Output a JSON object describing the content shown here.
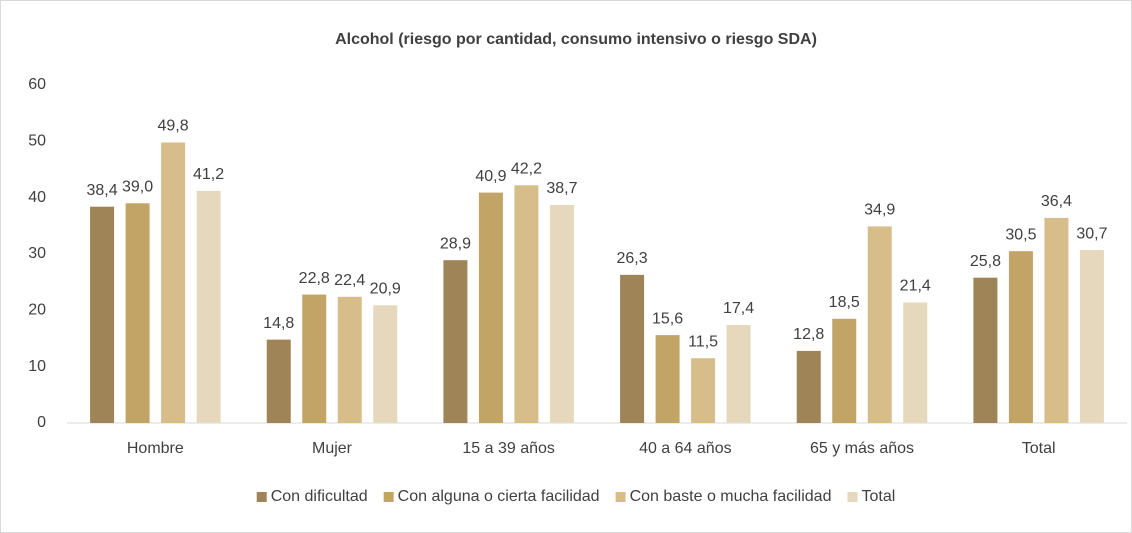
{
  "chart_data": {
    "type": "bar",
    "title": "Alcohol (riesgo por cantidad, consumo intensivo o riesgo SDA)",
    "categories": [
      "Hombre",
      "Mujer",
      "15 a 39 años",
      "40 a 64 años",
      "65 y más años",
      "Total"
    ],
    "series": [
      {
        "name": "Con dificultad",
        "color": "#9e8456",
        "values": [
          38.4,
          14.8,
          28.9,
          26.3,
          12.8,
          25.8
        ],
        "value_labels": [
          "38,4",
          "14,8",
          "28,9",
          "26,3",
          "12,8",
          "25,8"
        ]
      },
      {
        "name": "Con alguna o cierta facilidad",
        "color": "#c1a466",
        "values": [
          39.0,
          22.8,
          40.9,
          15.6,
          18.5,
          30.5
        ],
        "value_labels": [
          "39,0",
          "22,8",
          "40,9",
          "15,6",
          "18,5",
          "30,5"
        ]
      },
      {
        "name": "Con baste o mucha facilidad",
        "color": "#d6bd8a",
        "values": [
          49.8,
          22.4,
          42.2,
          11.5,
          34.9,
          36.4
        ],
        "value_labels": [
          "49,8",
          "22,4",
          "42,2",
          "11,5",
          "34,9",
          "36,4"
        ]
      },
      {
        "name": "Total",
        "color": "#e6d8bc",
        "values": [
          41.2,
          20.9,
          38.7,
          17.4,
          21.4,
          30.7
        ],
        "value_labels": [
          "41,2",
          "20,9",
          "38,7",
          "17,4",
          "21,4",
          "30,7"
        ]
      }
    ],
    "ylim": [
      0,
      60
    ],
    "yticks": [
      0,
      10,
      20,
      30,
      40,
      50,
      60
    ],
    "grid": false,
    "legend": "bottom"
  }
}
